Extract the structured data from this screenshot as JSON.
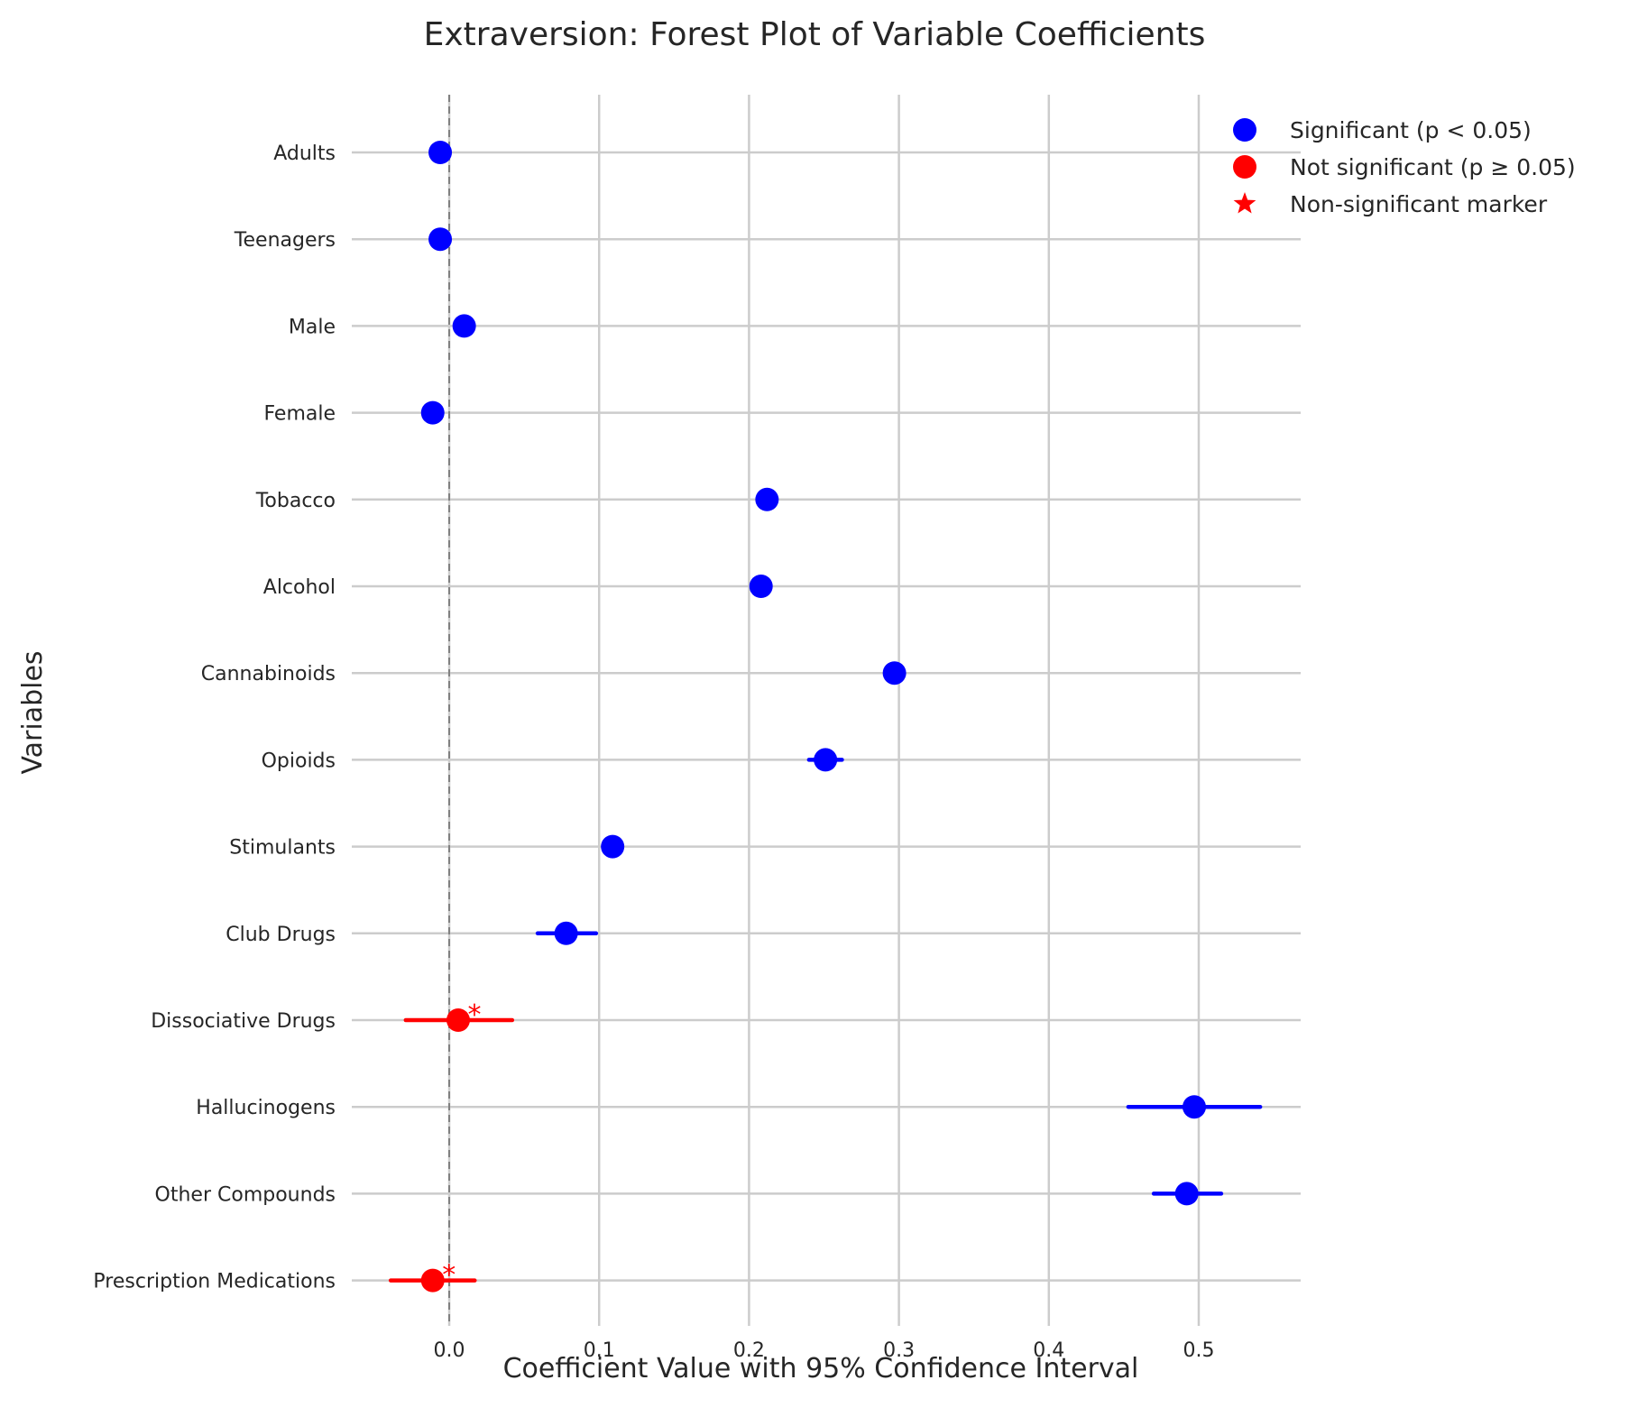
{
  "chart_data": {
    "type": "forest",
    "title": "Extraversion: Forest Plot of Variable Coefficients",
    "xlabel": "Coefficient Value with 95% Confidence Interval",
    "ylabel": "Variables",
    "xlim": [
      -0.065,
      0.568
    ],
    "xticks": [
      0.0,
      0.1,
      0.2,
      0.3,
      0.4,
      0.5
    ],
    "xtick_labels": [
      "0.0",
      "0.1",
      "0.2",
      "0.3",
      "0.4",
      "0.5"
    ],
    "grid": true,
    "reference_line": 0.0,
    "legend_position": "top-right",
    "legend": [
      {
        "label": "Significant (p < 0.05)",
        "marker": "circle",
        "color": "#0000ff"
      },
      {
        "label": "Not significant (p ≥ 0.05)",
        "marker": "circle",
        "color": "#ff0000"
      },
      {
        "label": "Non-significant marker",
        "marker": "star",
        "color": "#ff0000"
      }
    ],
    "colors": {
      "significant": "#0000ff",
      "not_significant": "#ff0000"
    },
    "non_significant_symbol": "*",
    "rows": [
      {
        "label": "Adults",
        "coef": -0.006,
        "ci": [
          -0.009,
          -0.003
        ],
        "significant": true
      },
      {
        "label": "Teenagers",
        "coef": -0.006,
        "ci": [
          -0.009,
          -0.003
        ],
        "significant": true
      },
      {
        "label": "Male",
        "coef": 0.01,
        "ci": [
          0.007,
          0.013
        ],
        "significant": true
      },
      {
        "label": "Female",
        "coef": -0.011,
        "ci": [
          -0.014,
          -0.008
        ],
        "significant": true
      },
      {
        "label": "Tobacco",
        "coef": 0.212,
        "ci": [
          0.209,
          0.215
        ],
        "significant": true
      },
      {
        "label": "Alcohol",
        "coef": 0.208,
        "ci": [
          0.205,
          0.211
        ],
        "significant": true
      },
      {
        "label": "Cannabinoids",
        "coef": 0.297,
        "ci": [
          0.294,
          0.3
        ],
        "significant": true
      },
      {
        "label": "Opioids",
        "coef": 0.251,
        "ci": [
          0.24,
          0.262
        ],
        "significant": true
      },
      {
        "label": "Stimulants",
        "coef": 0.109,
        "ci": [
          0.106,
          0.112
        ],
        "significant": true
      },
      {
        "label": "Club Drugs",
        "coef": 0.078,
        "ci": [
          0.059,
          0.098
        ],
        "significant": true
      },
      {
        "label": "Dissociative Drugs",
        "coef": 0.006,
        "ci": [
          -0.029,
          0.042
        ],
        "significant": false
      },
      {
        "label": "Hallucinogens",
        "coef": 0.497,
        "ci": [
          0.453,
          0.541
        ],
        "significant": true
      },
      {
        "label": "Other Compounds",
        "coef": 0.492,
        "ci": [
          0.47,
          0.515
        ],
        "significant": true
      },
      {
        "label": "Prescription Medications",
        "coef": -0.011,
        "ci": [
          -0.039,
          0.017
        ],
        "significant": false
      }
    ]
  }
}
